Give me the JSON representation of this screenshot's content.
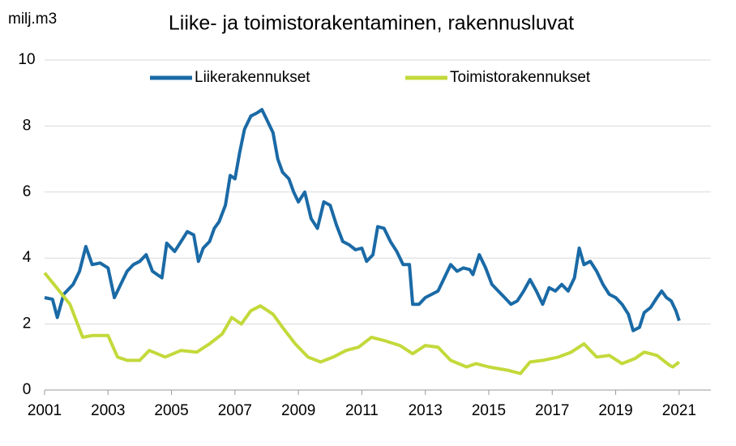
{
  "chart_data": {
    "type": "line",
    "title": "Liike- ja toimistorakentaminen, rakennusluvat",
    "y_label": "milj.m3",
    "xlim": [
      2001,
      2022
    ],
    "xticks": [
      2001,
      2003,
      2005,
      2007,
      2009,
      2011,
      2013,
      2015,
      2017,
      2019,
      2021
    ],
    "ylim": [
      0,
      10
    ],
    "yticks": [
      0,
      2,
      4,
      6,
      8,
      10
    ],
    "grid": true,
    "legend": "top",
    "series": [
      {
        "name": "Liikerakennukset",
        "color": "#1a6aa6",
        "x": [
          2001.0,
          2001.25,
          2001.4,
          2001.6,
          2001.9,
          2002.1,
          2002.3,
          2002.5,
          2002.75,
          2003.0,
          2003.2,
          2003.4,
          2003.6,
          2003.8,
          2004.0,
          2004.2,
          2004.4,
          2004.7,
          2004.85,
          2005.1,
          2005.3,
          2005.5,
          2005.7,
          2005.85,
          2006.0,
          2006.2,
          2006.35,
          2006.5,
          2006.7,
          2006.85,
          2007.0,
          2007.15,
          2007.3,
          2007.5,
          2007.7,
          2007.85,
          2008.0,
          2008.2,
          2008.35,
          2008.5,
          2008.7,
          2008.85,
          2009.0,
          2009.2,
          2009.4,
          2009.6,
          2009.8,
          2010.0,
          2010.2,
          2010.4,
          2010.6,
          2010.8,
          2011.0,
          2011.15,
          2011.35,
          2011.5,
          2011.7,
          2011.9,
          2012.1,
          2012.3,
          2012.5,
          2012.6,
          2012.8,
          2013.0,
          2013.2,
          2013.4,
          2013.6,
          2013.8,
          2014.0,
          2014.2,
          2014.4,
          2014.5,
          2014.7,
          2014.9,
          2015.1,
          2015.3,
          2015.5,
          2015.7,
          2015.9,
          2016.1,
          2016.3,
          2016.5,
          2016.7,
          2016.9,
          2017.1,
          2017.3,
          2017.5,
          2017.7,
          2017.85,
          2018.0,
          2018.2,
          2018.4,
          2018.6,
          2018.8,
          2019.0,
          2019.2,
          2019.4,
          2019.55,
          2019.75,
          2019.9,
          2020.1,
          2020.3,
          2020.45,
          2020.6,
          2020.75,
          2020.9,
          2021.0
        ],
        "values": [
          2.8,
          2.75,
          2.2,
          2.9,
          3.2,
          3.6,
          4.35,
          3.8,
          3.85,
          3.7,
          2.8,
          3.2,
          3.6,
          3.8,
          3.9,
          4.1,
          3.6,
          3.4,
          4.45,
          4.2,
          4.5,
          4.8,
          4.7,
          3.9,
          4.3,
          4.5,
          4.9,
          5.1,
          5.6,
          6.5,
          6.4,
          7.2,
          7.9,
          8.3,
          8.4,
          8.5,
          8.2,
          7.8,
          7.0,
          6.6,
          6.4,
          6.0,
          5.7,
          6.0,
          5.2,
          4.9,
          5.7,
          5.6,
          5.0,
          4.5,
          4.4,
          4.25,
          4.3,
          3.9,
          4.1,
          4.95,
          4.9,
          4.5,
          4.2,
          3.8,
          3.8,
          2.6,
          2.6,
          2.8,
          2.9,
          3.0,
          3.4,
          3.8,
          3.6,
          3.7,
          3.65,
          3.5,
          4.1,
          3.7,
          3.2,
          3.0,
          2.8,
          2.6,
          2.7,
          3.0,
          3.35,
          3.0,
          2.6,
          3.1,
          3.0,
          3.2,
          3.0,
          3.4,
          4.3,
          3.8,
          3.9,
          3.6,
          3.2,
          2.9,
          2.8,
          2.6,
          2.3,
          1.8,
          1.9,
          2.35,
          2.5,
          2.8,
          3.0,
          2.8,
          2.7,
          2.4,
          2.1
        ]
      },
      {
        "name": "Toimistorakennukset",
        "color": "#c3d93b",
        "x": [
          2001.0,
          2001.3,
          2001.8,
          2002.2,
          2002.5,
          2003.0,
          2003.3,
          2003.6,
          2004.0,
          2004.3,
          2004.8,
          2005.3,
          2005.8,
          2006.2,
          2006.6,
          2006.9,
          2007.2,
          2007.5,
          2007.8,
          2008.2,
          2008.5,
          2008.9,
          2009.3,
          2009.7,
          2010.1,
          2010.5,
          2010.9,
          2011.3,
          2011.7,
          2012.2,
          2012.6,
          2013.0,
          2013.4,
          2013.8,
          2014.3,
          2014.6,
          2015.0,
          2015.6,
          2016.0,
          2016.3,
          2016.7,
          2017.2,
          2017.6,
          2018.0,
          2018.4,
          2018.8,
          2019.2,
          2019.6,
          2019.9,
          2020.3,
          2020.7,
          2020.8,
          2021.0
        ],
        "values": [
          3.55,
          3.2,
          2.6,
          1.6,
          1.65,
          1.65,
          1.0,
          0.9,
          0.9,
          1.2,
          1.0,
          1.2,
          1.15,
          1.4,
          1.7,
          2.2,
          2.0,
          2.4,
          2.55,
          2.3,
          1.9,
          1.4,
          1.0,
          0.85,
          1.0,
          1.2,
          1.3,
          1.6,
          1.5,
          1.35,
          1.1,
          1.35,
          1.3,
          0.9,
          0.7,
          0.8,
          0.7,
          0.6,
          0.5,
          0.85,
          0.9,
          1.0,
          1.15,
          1.4,
          1.0,
          1.05,
          0.8,
          0.95,
          1.15,
          1.05,
          0.75,
          0.7,
          0.85
        ]
      }
    ]
  }
}
